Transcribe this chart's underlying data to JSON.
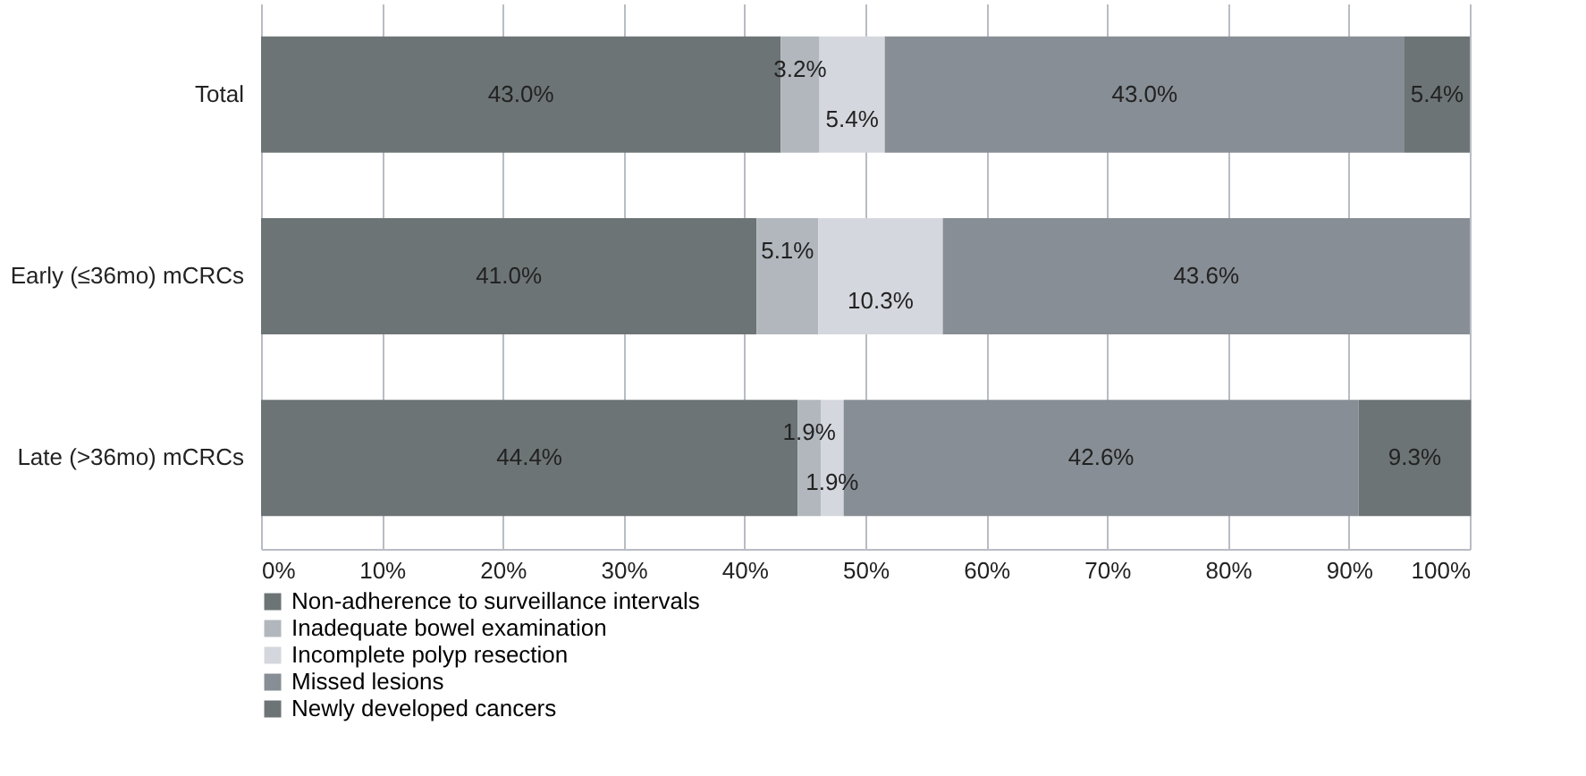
{
  "chart_data": {
    "type": "bar",
    "orientation": "horizontal",
    "stacked": true,
    "categories": [
      "Total",
      "Early (≤36mo) mCRCs",
      "Late (>36mo) mCRCs"
    ],
    "series": [
      {
        "name": "Non-adherence to surveillance intervals",
        "color": "#6d7476",
        "values": [
          43.0,
          41.0,
          44.4
        ],
        "value_labels": [
          "43.0%",
          "41.0%",
          "44.4%"
        ]
      },
      {
        "name": "Inadequate bowel examination",
        "color": "#b1b7bd",
        "values": [
          3.2,
          5.1,
          1.9
        ],
        "value_labels": [
          "3.2%",
          "5.1%",
          "1.9%"
        ]
      },
      {
        "name": "Incomplete polyp resection",
        "color": "#d5d7de",
        "values": [
          5.4,
          10.3,
          1.9
        ],
        "value_labels": [
          "5.4%",
          "10.3%",
          "1.9%"
        ]
      },
      {
        "name": "Missed lesions",
        "color": "#878e95",
        "values": [
          43.0,
          43.6,
          42.6
        ],
        "value_labels": [
          "43.0%",
          "43.6%",
          "42.6%"
        ]
      },
      {
        "name": "Newly developed cancers",
        "color": "#6d7476",
        "values": [
          5.4,
          null,
          9.3
        ],
        "value_labels": [
          "5.4%",
          null,
          "9.3%"
        ]
      }
    ],
    "xlim": [
      0,
      100
    ],
    "xticks": [
      {
        "value": 0,
        "label": "0%"
      },
      {
        "value": 10,
        "label": "10%"
      },
      {
        "value": 20,
        "label": "20%"
      },
      {
        "value": 30,
        "label": "30%"
      },
      {
        "value": 40,
        "label": "40%"
      },
      {
        "value": 50,
        "label": "50%"
      },
      {
        "value": 60,
        "label": "60%"
      },
      {
        "value": 70,
        "label": "70%"
      },
      {
        "value": 80,
        "label": "80%"
      },
      {
        "value": 90,
        "label": "90%"
      },
      {
        "value": 100,
        "label": "100%"
      }
    ],
    "grid": "x",
    "legend": "bottom"
  }
}
